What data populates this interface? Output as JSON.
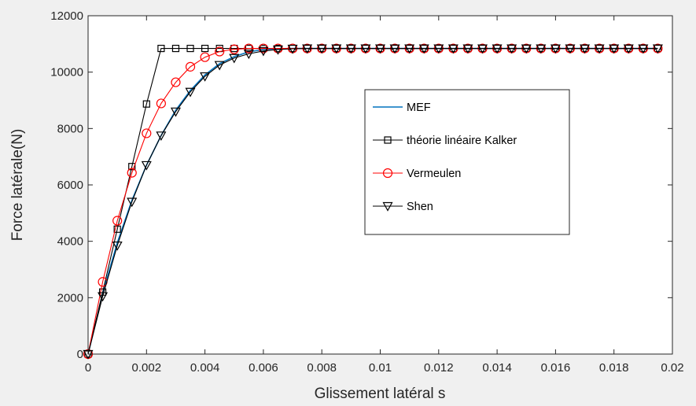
{
  "chart_data": {
    "type": "line",
    "xlabel": "Glissement latéral s",
    "ylabel": "Force latérale(N)",
    "xlim": [
      0,
      0.02
    ],
    "ylim": [
      0,
      12000
    ],
    "xticks": [
      0,
      0.002,
      0.004,
      0.006,
      0.008,
      0.01,
      0.012,
      0.014,
      0.016,
      0.018,
      0.02
    ],
    "xtick_labels": [
      "0",
      "0.002",
      "0.004",
      "0.006",
      "0.008",
      "0.01",
      "0.012",
      "0.014",
      "0.016",
      "0.018",
      "0.02"
    ],
    "yticks": [
      0,
      2000,
      4000,
      6000,
      8000,
      10000,
      12000
    ],
    "ytick_labels": [
      "0",
      "2000",
      "4000",
      "6000",
      "8000",
      "10000",
      "12000"
    ],
    "grid": false,
    "legend_position": "right",
    "series": [
      {
        "name": "MEF",
        "color": "#0072bd",
        "marker": "none",
        "x": [
          0,
          0.0005,
          0.001,
          0.0015,
          0.002,
          0.0025,
          0.003,
          0.0035,
          0.004,
          0.0045,
          0.005,
          0.0055,
          0.006,
          0.0065,
          0.007,
          0.0195
        ],
        "y": [
          0,
          2150,
          3950,
          5450,
          6700,
          7750,
          8650,
          9350,
          9900,
          10300,
          10550,
          10720,
          10800,
          10830,
          10840,
          10840
        ]
      },
      {
        "name": "théorie linéaire Kalker",
        "color": "#000000",
        "marker": "square",
        "x": [
          0,
          0.0005,
          0.001,
          0.0015,
          0.002,
          0.0025,
          0.003,
          0.0035,
          0.004,
          0.0045,
          0.005,
          0.0055,
          0.006,
          0.0065,
          0.007,
          0.0075,
          0.008,
          0.0085,
          0.009,
          0.0095,
          0.01,
          0.0105,
          0.011,
          0.0115,
          0.012,
          0.0125,
          0.013,
          0.0135,
          0.014,
          0.0145,
          0.015,
          0.0155,
          0.016,
          0.0165,
          0.017,
          0.0175,
          0.018,
          0.0185,
          0.019,
          0.0195
        ],
        "y": [
          0,
          2200,
          4430,
          6650,
          8870,
          10840,
          10840,
          10840,
          10840,
          10840,
          10840,
          10840,
          10840,
          10840,
          10840,
          10840,
          10840,
          10840,
          10840,
          10840,
          10840,
          10840,
          10840,
          10840,
          10840,
          10840,
          10840,
          10840,
          10840,
          10840,
          10840,
          10840,
          10840,
          10840,
          10840,
          10840,
          10840,
          10840,
          10840,
          10840
        ]
      },
      {
        "name": "Vermeulen",
        "color": "#ff0000",
        "marker": "circle",
        "x": [
          0,
          0.0005,
          0.001,
          0.0015,
          0.002,
          0.0025,
          0.003,
          0.0035,
          0.004,
          0.0045,
          0.005,
          0.0055,
          0.006,
          0.0065,
          0.007,
          0.0075,
          0.008,
          0.0085,
          0.009,
          0.0095,
          0.01,
          0.0105,
          0.011,
          0.0115,
          0.012,
          0.0125,
          0.013,
          0.0135,
          0.014,
          0.0145,
          0.015,
          0.0155,
          0.016,
          0.0165,
          0.017,
          0.0175,
          0.018,
          0.0185,
          0.019,
          0.0195
        ],
        "y": [
          0,
          2560,
          4730,
          6430,
          7830,
          8890,
          9640,
          10190,
          10530,
          10730,
          10810,
          10840,
          10840,
          10840,
          10840,
          10840,
          10840,
          10840,
          10840,
          10840,
          10840,
          10840,
          10840,
          10840,
          10840,
          10840,
          10840,
          10840,
          10840,
          10840,
          10840,
          10840,
          10840,
          10840,
          10840,
          10840,
          10840,
          10840,
          10840,
          10840
        ]
      },
      {
        "name": "Shen",
        "color": "#000000",
        "marker": "triangle-down",
        "x": [
          0,
          0.0005,
          0.001,
          0.0015,
          0.002,
          0.0025,
          0.003,
          0.0035,
          0.004,
          0.0045,
          0.005,
          0.0055,
          0.006,
          0.0065,
          0.007,
          0.0075,
          0.008,
          0.0085,
          0.009,
          0.0095,
          0.01,
          0.0105,
          0.011,
          0.0115,
          0.012,
          0.0125,
          0.013,
          0.0135,
          0.014,
          0.0145,
          0.015,
          0.0155,
          0.016,
          0.0165,
          0.017,
          0.0175,
          0.018,
          0.0185,
          0.019,
          0.0195
        ],
        "y": [
          0,
          2050,
          3850,
          5400,
          6700,
          7750,
          8600,
          9300,
          9850,
          10250,
          10500,
          10650,
          10750,
          10800,
          10830,
          10840,
          10840,
          10840,
          10840,
          10840,
          10840,
          10840,
          10840,
          10840,
          10840,
          10840,
          10840,
          10840,
          10840,
          10840,
          10840,
          10840,
          10840,
          10840,
          10840,
          10840,
          10840,
          10840,
          10840,
          10840
        ]
      }
    ]
  }
}
